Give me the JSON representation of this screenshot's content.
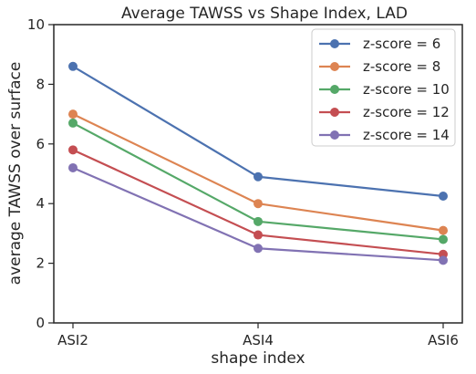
{
  "chart_data": {
    "type": "line",
    "title": "Average TAWSS vs Shape Index, LAD",
    "xlabel": "shape index",
    "ylabel": "average TAWSS over surface",
    "categories": [
      "ASI2",
      "ASI4",
      "ASI6"
    ],
    "ylim": [
      0,
      10
    ],
    "yticks": [
      0,
      2,
      4,
      6,
      8,
      10
    ],
    "grid": false,
    "legend_position": "top-right",
    "series": [
      {
        "name": "z-score = 6",
        "color": "#4c72b0",
        "values": [
          8.6,
          4.9,
          4.25
        ]
      },
      {
        "name": "z-score = 8",
        "color": "#dd8452",
        "values": [
          7.0,
          4.0,
          3.1
        ]
      },
      {
        "name": "z-score = 10",
        "color": "#55a868",
        "values": [
          6.7,
          3.4,
          2.8
        ]
      },
      {
        "name": "z-score = 12",
        "color": "#c44e52",
        "values": [
          5.8,
          2.95,
          2.3
        ]
      },
      {
        "name": "z-score = 14",
        "color": "#8172b3",
        "values": [
          5.2,
          2.5,
          2.1
        ]
      }
    ]
  }
}
